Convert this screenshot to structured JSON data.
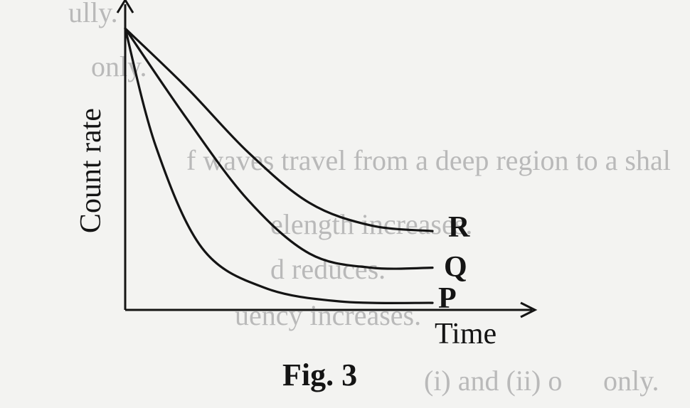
{
  "figure": {
    "caption": "Fig. 3"
  },
  "chart_data": {
    "type": "line",
    "xlabel": "Time",
    "ylabel": "Count rate",
    "axis_ticks": false,
    "grid": false,
    "series": [
      {
        "name": "R",
        "color": "#141414",
        "points": [
          [
            0,
            1.0
          ],
          [
            0.2,
            0.79
          ],
          [
            0.4,
            0.56
          ],
          [
            0.6,
            0.38
          ],
          [
            0.8,
            0.3
          ],
          [
            1.0,
            0.28
          ]
        ]
      },
      {
        "name": "Q",
        "color": "#141414",
        "points": [
          [
            0,
            1.0
          ],
          [
            0.2,
            0.68
          ],
          [
            0.4,
            0.39
          ],
          [
            0.6,
            0.2
          ],
          [
            0.8,
            0.15
          ],
          [
            1.0,
            0.15
          ]
        ]
      },
      {
        "name": "P",
        "color": "#141414",
        "points": [
          [
            0,
            1.0
          ],
          [
            0.1,
            0.58
          ],
          [
            0.25,
            0.22
          ],
          [
            0.45,
            0.08
          ],
          [
            0.7,
            0.03
          ],
          [
            1.0,
            0.025
          ]
        ]
      }
    ]
  },
  "background_bleed": [
    "ully.",
    "only.",
    "f waves travel from a deep region to a shal",
    "elength increases.",
    "d reduces.",
    "uency increases.",
    "only.",
    "(i) and (ii) o"
  ]
}
